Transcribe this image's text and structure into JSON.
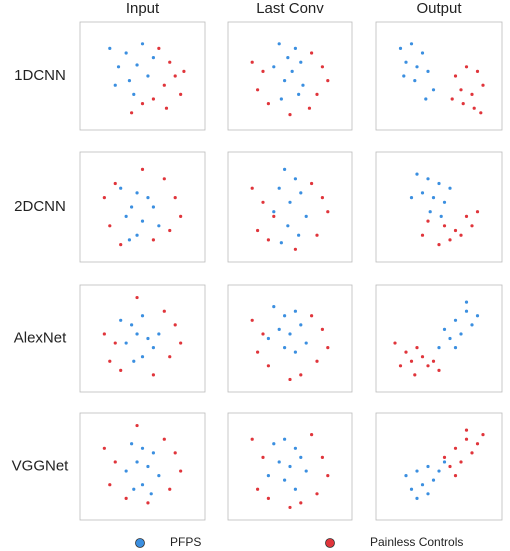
{
  "columns": [
    "Input",
    "Last Conv",
    "Output"
  ],
  "rows": [
    "1DCNN",
    "2DCNN",
    "AlexNet",
    "VGGNet"
  ],
  "legend": [
    {
      "name": "PFPS",
      "color": "#3b8fe0"
    },
    {
      "name": "Painless Controls",
      "color": "#e0353b"
    }
  ],
  "chart_data": [
    {
      "type": "scatter",
      "xlim": [
        0,
        100
      ],
      "ylim": [
        0,
        100
      ],
      "series": [
        {
          "x": [
            20,
            35,
            50,
            28,
            45,
            60,
            38,
            55,
            25,
            42
          ],
          "y": [
            80,
            75,
            85,
            60,
            62,
            70,
            45,
            50,
            40,
            30
          ]
        },
        {
          "x": [
            65,
            75,
            80,
            70,
            85,
            60,
            50,
            72,
            40,
            88
          ],
          "y": [
            80,
            65,
            50,
            40,
            30,
            25,
            20,
            15,
            10,
            55
          ]
        }
      ]
    },
    {
      "type": "scatter",
      "xlim": [
        0,
        100
      ],
      "ylim": [
        0,
        100
      ],
      "series": [
        {
          "x": [
            40,
            55,
            48,
            60,
            35,
            52,
            45,
            62,
            58,
            42
          ],
          "y": [
            85,
            80,
            70,
            65,
            60,
            55,
            45,
            40,
            30,
            25
          ]
        },
        {
          "x": [
            15,
            25,
            70,
            80,
            85,
            20,
            75,
            30,
            68,
            50
          ],
          "y": [
            65,
            55,
            75,
            60,
            45,
            35,
            30,
            20,
            15,
            8
          ]
        }
      ]
    },
    {
      "type": "scatter",
      "xlim": [
        0,
        100
      ],
      "ylim": [
        0,
        100
      ],
      "series": [
        {
          "x": [
            15,
            25,
            35,
            20,
            30,
            40,
            28,
            45,
            18,
            38
          ],
          "y": [
            80,
            85,
            75,
            65,
            60,
            55,
            45,
            35,
            50,
            25
          ]
        },
        {
          "x": [
            65,
            75,
            85,
            70,
            80,
            90,
            72,
            82,
            62,
            88
          ],
          "y": [
            50,
            60,
            55,
            35,
            30,
            40,
            20,
            15,
            25,
            10
          ]
        }
      ]
    },
    {
      "type": "scatter",
      "xlim": [
        0,
        100
      ],
      "ylim": [
        0,
        100
      ],
      "series": [
        {
          "x": [
            30,
            45,
            55,
            40,
            60,
            35,
            50,
            65,
            45,
            38
          ],
          "y": [
            70,
            65,
            60,
            50,
            50,
            40,
            35,
            30,
            20,
            15
          ]
        },
        {
          "x": [
            15,
            25,
            50,
            70,
            80,
            85,
            20,
            60,
            75,
            30
          ],
          "y": [
            60,
            75,
            90,
            80,
            60,
            40,
            30,
            15,
            25,
            10
          ]
        }
      ]
    },
    {
      "type": "scatter",
      "xlim": [
        0,
        100
      ],
      "ylim": [
        0,
        100
      ],
      "series": [
        {
          "x": [
            45,
            55,
            40,
            60,
            50,
            35,
            65,
            48,
            58,
            42
          ],
          "y": [
            90,
            80,
            70,
            65,
            55,
            45,
            40,
            30,
            20,
            12
          ]
        },
        {
          "x": [
            15,
            25,
            35,
            70,
            80,
            85,
            20,
            30,
            75,
            55
          ],
          "y": [
            70,
            55,
            40,
            75,
            60,
            45,
            25,
            15,
            20,
            5
          ]
        }
      ]
    },
    {
      "type": "scatter",
      "xlim": [
        0,
        100
      ],
      "ylim": [
        0,
        100
      ],
      "series": [
        {
          "x": [
            30,
            40,
            50,
            35,
            45,
            55,
            60,
            42,
            25,
            52
          ],
          "y": [
            85,
            80,
            75,
            65,
            60,
            55,
            70,
            45,
            60,
            40
          ]
        },
        {
          "x": [
            40,
            55,
            65,
            75,
            60,
            70,
            80,
            50,
            85,
            35
          ],
          "y": [
            35,
            30,
            25,
            40,
            15,
            20,
            30,
            10,
            45,
            20
          ]
        }
      ]
    },
    {
      "type": "scatter",
      "xlim": [
        0,
        100
      ],
      "ylim": [
        0,
        100
      ],
      "series": [
        {
          "x": [
            30,
            40,
            50,
            45,
            55,
            35,
            60,
            50,
            42,
            65
          ],
          "y": [
            70,
            65,
            75,
            55,
            50,
            45,
            40,
            30,
            25,
            55
          ]
        },
        {
          "x": [
            15,
            25,
            45,
            70,
            80,
            85,
            20,
            60,
            75,
            30
          ],
          "y": [
            55,
            45,
            95,
            80,
            65,
            45,
            25,
            10,
            30,
            15
          ]
        }
      ]
    },
    {
      "type": "scatter",
      "xlim": [
        0,
        100
      ],
      "ylim": [
        0,
        100
      ],
      "series": [
        {
          "x": [
            35,
            45,
            55,
            40,
            50,
            60,
            45,
            55,
            65,
            30
          ],
          "y": [
            85,
            75,
            80,
            60,
            55,
            65,
            40,
            35,
            45,
            50
          ]
        },
        {
          "x": [
            15,
            25,
            70,
            80,
            85,
            20,
            30,
            75,
            60,
            50
          ],
          "y": [
            70,
            55,
            75,
            60,
            40,
            35,
            20,
            25,
            10,
            5
          ]
        }
      ]
    },
    {
      "type": "scatter",
      "xlim": [
        0,
        100
      ],
      "ylim": [
        0,
        100
      ],
      "series": [
        {
          "x": [
            55,
            65,
            75,
            60,
            70,
            80,
            50,
            65,
            85,
            75
          ],
          "y": [
            60,
            70,
            80,
            50,
            55,
            65,
            40,
            40,
            75,
            90
          ]
        },
        {
          "x": [
            10,
            20,
            30,
            15,
            25,
            35,
            40,
            28,
            45,
            50
          ],
          "y": [
            45,
            35,
            40,
            20,
            25,
            30,
            20,
            10,
            25,
            15
          ]
        }
      ]
    },
    {
      "type": "scatter",
      "xlim": [
        0,
        100
      ],
      "ylim": [
        0,
        100
      ],
      "series": [
        {
          "x": [
            40,
            50,
            60,
            45,
            55,
            35,
            65,
            50,
            42,
            58
          ],
          "y": [
            75,
            70,
            65,
            55,
            50,
            45,
            40,
            30,
            25,
            20
          ]
        },
        {
          "x": [
            15,
            25,
            45,
            70,
            80,
            85,
            20,
            35,
            75,
            55
          ],
          "y": [
            70,
            55,
            95,
            80,
            65,
            45,
            30,
            15,
            25,
            10
          ]
        }
      ]
    },
    {
      "type": "scatter",
      "xlim": [
        0,
        100
      ],
      "ylim": [
        0,
        100
      ],
      "series": [
        {
          "x": [
            35,
            45,
            55,
            40,
            50,
            60,
            45,
            30,
            65,
            55
          ],
          "y": [
            75,
            80,
            70,
            55,
            50,
            60,
            35,
            40,
            45,
            25
          ]
        },
        {
          "x": [
            15,
            25,
            70,
            80,
            85,
            20,
            30,
            75,
            60,
            50
          ],
          "y": [
            80,
            60,
            85,
            60,
            40,
            25,
            15,
            20,
            10,
            5
          ]
        }
      ]
    },
    {
      "type": "scatter",
      "xlim": [
        0,
        100
      ],
      "ylim": [
        0,
        100
      ],
      "series": [
        {
          "x": [
            20,
            30,
            40,
            25,
            35,
            45,
            50,
            30,
            40,
            55
          ],
          "y": [
            40,
            45,
            50,
            25,
            30,
            35,
            45,
            15,
            20,
            55
          ]
        },
        {
          "x": [
            55,
            65,
            75,
            60,
            70,
            80,
            85,
            65,
            90,
            75
          ],
          "y": [
            60,
            70,
            80,
            50,
            55,
            65,
            75,
            40,
            85,
            90
          ]
        }
      ]
    }
  ]
}
